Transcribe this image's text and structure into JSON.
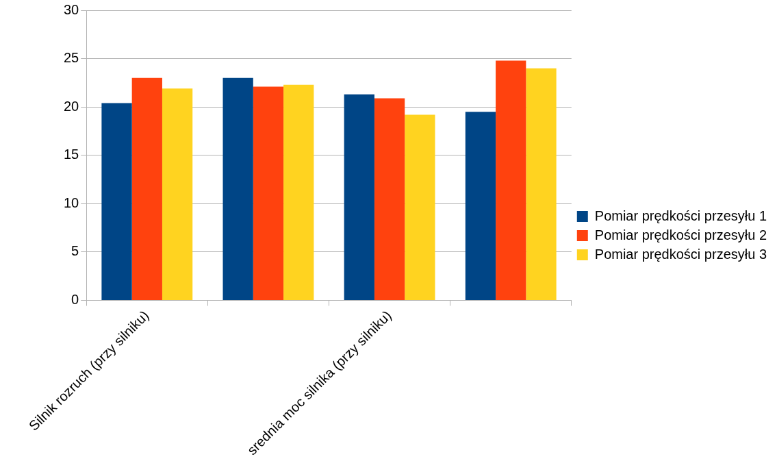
{
  "chart_data": {
    "type": "bar",
    "categories": [
      "Silnik rozruch (przy silniku)",
      null,
      "srednia moc silnika (przy silniku)",
      null
    ],
    "series": [
      {
        "name": "Pomiar prędkości przesyłu 1",
        "color": "#004586",
        "values": [
          20.4,
          23.0,
          21.3,
          19.5
        ]
      },
      {
        "name": "Pomiar prędkości przesyłu 2",
        "color": "#ff420e",
        "values": [
          23.0,
          22.1,
          20.9,
          24.8
        ]
      },
      {
        "name": "Pomiar prędkości przesyłu 3",
        "color": "#ffd320",
        "values": [
          21.9,
          22.3,
          19.2,
          24.0
        ]
      }
    ],
    "ylim": [
      0,
      30
    ],
    "yticks": [
      0,
      5,
      10,
      15,
      20,
      25,
      30
    ],
    "grid": "y",
    "legend": "right"
  }
}
